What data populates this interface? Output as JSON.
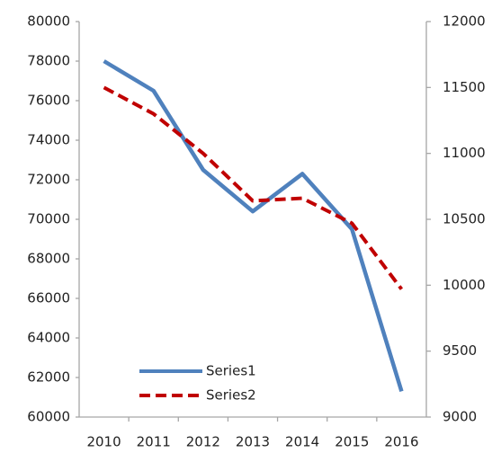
{
  "chart_data": {
    "type": "line",
    "categories": [
      "2010",
      "2011",
      "2012",
      "2013",
      "2014",
      "2015",
      "2016"
    ],
    "series": [
      {
        "name": "Series1",
        "color": "#4f81bd",
        "dash": false,
        "values": [
          78000,
          76500,
          72500,
          70400,
          72300,
          69500,
          61300
        ]
      },
      {
        "name": "Series2",
        "color": "#c00000",
        "dash": true,
        "axis": "y2",
        "values": [
          11500,
          11300,
          11000,
          10640,
          10660,
          10470,
          9970
        ]
      }
    ],
    "ylim": [
      60000,
      80000
    ],
    "yticks": [
      60000,
      62000,
      64000,
      66000,
      68000,
      70000,
      72000,
      74000,
      76000,
      78000,
      80000
    ],
    "y2lim": [
      9000,
      12000
    ],
    "y2ticks": [
      9000,
      9500,
      10000,
      10500,
      11000,
      11500,
      12000
    ],
    "grid": false,
    "legend": "lower left"
  }
}
